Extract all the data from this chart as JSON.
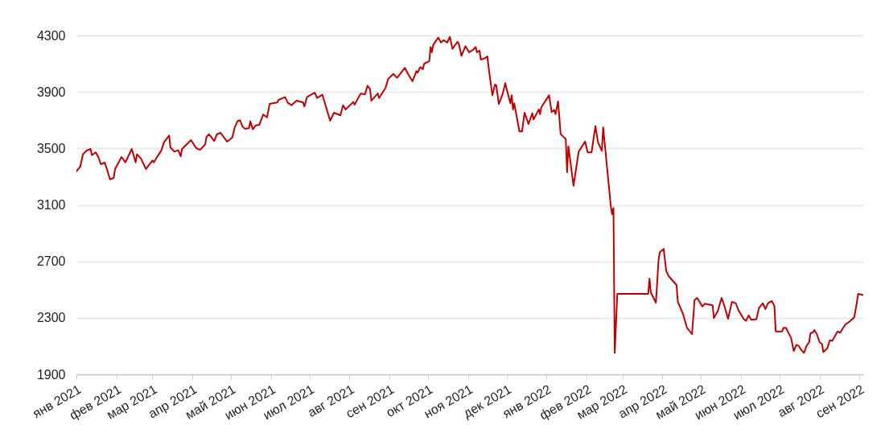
{
  "chart_data": {
    "type": "line",
    "color": "#c00000",
    "line_style": "solid",
    "grid": "y",
    "x": [
      "2021-01-01",
      "2021-01-04",
      "2021-01-06",
      "2021-01-09",
      "2021-01-12",
      "2021-01-13",
      "2021-01-16",
      "2021-01-18",
      "2021-01-20",
      "2021-01-23",
      "2021-01-25",
      "2021-01-27",
      "2021-01-30",
      "2021-01-31",
      "2021-02-05",
      "2021-02-08",
      "2021-02-13",
      "2021-02-16",
      "2021-02-17",
      "2021-02-20",
      "2021-02-24",
      "2021-03-01",
      "2021-03-02",
      "2021-03-08",
      "2021-03-10",
      "2021-03-14",
      "2021-03-15",
      "2021-03-18",
      "2021-03-21",
      "2021-03-23",
      "2021-03-24",
      "2021-03-31",
      "2021-04-04",
      "2021-04-07",
      "2021-04-11",
      "2021-04-12",
      "2021-04-14",
      "2021-04-18",
      "2021-04-20",
      "2021-04-23",
      "2021-04-28",
      "2021-05-02",
      "2021-05-04",
      "2021-05-06",
      "2021-05-08",
      "2021-05-10",
      "2021-05-12",
      "2021-05-15",
      "2021-05-16",
      "2021-05-18",
      "2021-05-20",
      "2021-05-23",
      "2021-05-26",
      "2021-05-29",
      "2021-05-31",
      "2021-06-06",
      "2021-06-07",
      "2021-06-12",
      "2021-06-14",
      "2021-06-17",
      "2021-06-21",
      "2021-06-26",
      "2021-06-27",
      "2021-06-29",
      "2021-07-05",
      "2021-07-07",
      "2021-07-11",
      "2021-07-17",
      "2021-07-20",
      "2021-07-25",
      "2021-07-27",
      "2021-07-29",
      "2021-08-04",
      "2021-08-05",
      "2021-08-09",
      "2021-08-10",
      "2021-08-13",
      "2021-08-15",
      "2021-08-17",
      "2021-08-18",
      "2021-08-23",
      "2021-08-24",
      "2021-08-29",
      "2021-08-31",
      "2021-09-04",
      "2021-09-07",
      "2021-09-13",
      "2021-09-16",
      "2021-09-19",
      "2021-09-22",
      "2021-09-23",
      "2021-09-25",
      "2021-09-27",
      "2021-09-28",
      "2021-10-02",
      "2021-10-03",
      "2021-10-04",
      "2021-10-05",
      "2021-10-09",
      "2021-10-11",
      "2021-10-13",
      "2021-10-16",
      "2021-10-18",
      "2021-10-20",
      "2021-10-24",
      "2021-10-25",
      "2021-10-27",
      "2021-10-30",
      "2021-11-02",
      "2021-11-05",
      "2021-11-07",
      "2021-11-08",
      "2021-11-10",
      "2021-11-11",
      "2021-11-14",
      "2021-11-16",
      "2021-11-18",
      "2021-11-20",
      "2021-11-22",
      "2021-11-23",
      "2021-11-25",
      "2021-11-28",
      "2021-11-30",
      "2021-12-01",
      "2021-12-04",
      "2021-12-05",
      "2021-12-06",
      "2021-12-07",
      "2021-12-11",
      "2021-12-13",
      "2021-12-15",
      "2021-12-18",
      "2021-12-21",
      "2021-12-22",
      "2021-12-26",
      "2021-12-27",
      "2021-12-28",
      "2022-01-03",
      "2022-01-05",
      "2022-01-07",
      "2022-01-08",
      "2022-01-10",
      "2022-01-12",
      "2022-01-16",
      "2022-01-17",
      "2022-01-18",
      "2022-01-22",
      "2022-01-26",
      "2022-01-31",
      "2022-02-02",
      "2022-02-05",
      "2022-02-08",
      "2022-02-10",
      "2022-02-13",
      "2022-02-14",
      "2022-02-20",
      "2022-02-21",
      "2022-02-22",
      "2022-02-23",
      "2022-02-25",
      "2022-03-21",
      "2022-03-22",
      "2022-03-23",
      "2022-03-27",
      "2022-03-29",
      "2022-03-30",
      "2022-04-02",
      "2022-04-04",
      "2022-04-06",
      "2022-04-12",
      "2022-04-13",
      "2022-04-17",
      "2022-04-20",
      "2022-04-24",
      "2022-04-26",
      "2022-04-28",
      "2022-05-02",
      "2022-05-04",
      "2022-05-10",
      "2022-05-11",
      "2022-05-14",
      "2022-05-17",
      "2022-05-19",
      "2022-05-22",
      "2022-05-25",
      "2022-05-28",
      "2022-05-30",
      "2022-06-03",
      "2022-06-05",
      "2022-06-07",
      "2022-06-09",
      "2022-06-13",
      "2022-06-15",
      "2022-06-18",
      "2022-06-20",
      "2022-06-22",
      "2022-06-25",
      "2022-06-27",
      "2022-06-28",
      "2022-07-03",
      "2022-07-04",
      "2022-07-06",
      "2022-07-10",
      "2022-07-12",
      "2022-07-14",
      "2022-07-16",
      "2022-07-18",
      "2022-07-20",
      "2022-07-22",
      "2022-07-24",
      "2022-07-25",
      "2022-07-27",
      "2022-07-28",
      "2022-07-30",
      "2022-08-01",
      "2022-08-03",
      "2022-08-04",
      "2022-08-07",
      "2022-08-09",
      "2022-08-11",
      "2022-08-15",
      "2022-08-17",
      "2022-08-21",
      "2022-08-24",
      "2022-08-28",
      "2022-08-30",
      "2022-08-31",
      "2022-09-04"
    ],
    "values": [
      3337,
      3371,
      3458,
      3485,
      3496,
      3452,
      3472,
      3439,
      3388,
      3399,
      3344,
      3281,
      3291,
      3354,
      3439,
      3401,
      3496,
      3401,
      3458,
      3430,
      3354,
      3414,
      3401,
      3487,
      3544,
      3591,
      3506,
      3477,
      3487,
      3445,
      3496,
      3559,
      3502,
      3490,
      3529,
      3582,
      3600,
      3553,
      3600,
      3610,
      3548,
      3578,
      3649,
      3692,
      3700,
      3654,
      3639,
      3643,
      3692,
      3635,
      3661,
      3667,
      3740,
      3720,
      3815,
      3825,
      3844,
      3863,
      3825,
      3806,
      3838,
      3825,
      3797,
      3863,
      3895,
      3857,
      3880,
      3696,
      3753,
      3734,
      3806,
      3776,
      3829,
      3810,
      3876,
      3889,
      3882,
      3943,
      3920,
      3838,
      3889,
      3857,
      3928,
      3990,
      4028,
      4000,
      4070,
      4019,
      3975,
      4047,
      4038,
      4076,
      4061,
      4099,
      4118,
      4218,
      4180,
      4232,
      4285,
      4250,
      4266,
      4250,
      4290,
      4205,
      4256,
      4237,
      4156,
      4224,
      4180,
      4199,
      4218,
      4180,
      4193,
      4129,
      4137,
      4152,
      4009,
      3876,
      3952,
      3947,
      3814,
      3886,
      3962,
      3924,
      3819,
      3876,
      3776,
      3819,
      3620,
      3620,
      3753,
      3673,
      3749,
      3705,
      3776,
      3743,
      3791,
      3876,
      3757,
      3772,
      3743,
      3832,
      3601,
      3566,
      3331,
      3515,
      3236,
      3477,
      3549,
      3472,
      3472,
      3658,
      3544,
      3483,
      3649,
      3088,
      3034,
      3078,
      2052,
      2470,
      2470,
      2578,
      2480,
      2407,
      2708,
      2765,
      2788,
      2632,
      2594,
      2533,
      2413,
      2328,
      2232,
      2185,
      2426,
      2441,
      2381,
      2400,
      2389,
      2299,
      2347,
      2441,
      2389,
      2293,
      2413,
      2404,
      2356,
      2293,
      2280,
      2318,
      2286,
      2290,
      2370,
      2404,
      2362,
      2404,
      2419,
      2384,
      2204,
      2204,
      2229,
      2229,
      2156,
      2065,
      2109,
      2100,
      2071,
      2052,
      2103,
      2128,
      2191,
      2198,
      2214,
      2185,
      2128,
      2115,
      2058,
      2084,
      2141,
      2138,
      2204,
      2195,
      2252,
      2271,
      2305,
      2407,
      2470,
      2461
    ],
    "xlim": [
      "2021-01-01",
      "2022-09-04"
    ],
    "xticks": [
      {
        "value": "2021-01-01",
        "label": "янв 2021"
      },
      {
        "value": "2021-02-01",
        "label": "фев 2021"
      },
      {
        "value": "2021-03-01",
        "label": "мар 2021"
      },
      {
        "value": "2021-04-01",
        "label": "апр 2021"
      },
      {
        "value": "2021-05-01",
        "label": "май 2021"
      },
      {
        "value": "2021-06-01",
        "label": "июн 2021"
      },
      {
        "value": "2021-07-01",
        "label": "июл 2021"
      },
      {
        "value": "2021-08-01",
        "label": "авг 2021"
      },
      {
        "value": "2021-09-01",
        "label": "сен 2021"
      },
      {
        "value": "2021-10-01",
        "label": "окт 2021"
      },
      {
        "value": "2021-11-01",
        "label": "ноя 2021"
      },
      {
        "value": "2021-12-01",
        "label": "дек 2021"
      },
      {
        "value": "2022-01-01",
        "label": "янв 2022"
      },
      {
        "value": "2022-02-01",
        "label": "фев 2022"
      },
      {
        "value": "2022-03-01",
        "label": "мар 2022"
      },
      {
        "value": "2022-04-01",
        "label": "апр 2022"
      },
      {
        "value": "2022-05-01",
        "label": "май 2022"
      },
      {
        "value": "2022-06-01",
        "label": "июн 2022"
      },
      {
        "value": "2022-07-01",
        "label": "июл 2022"
      },
      {
        "value": "2022-08-01",
        "label": "авг 2022"
      },
      {
        "value": "2022-09-01",
        "label": "сен 2022"
      }
    ],
    "ylim": [
      1900,
      4300
    ],
    "yticks": [
      1900,
      2300,
      2700,
      3100,
      3500,
      3900,
      4300
    ]
  }
}
